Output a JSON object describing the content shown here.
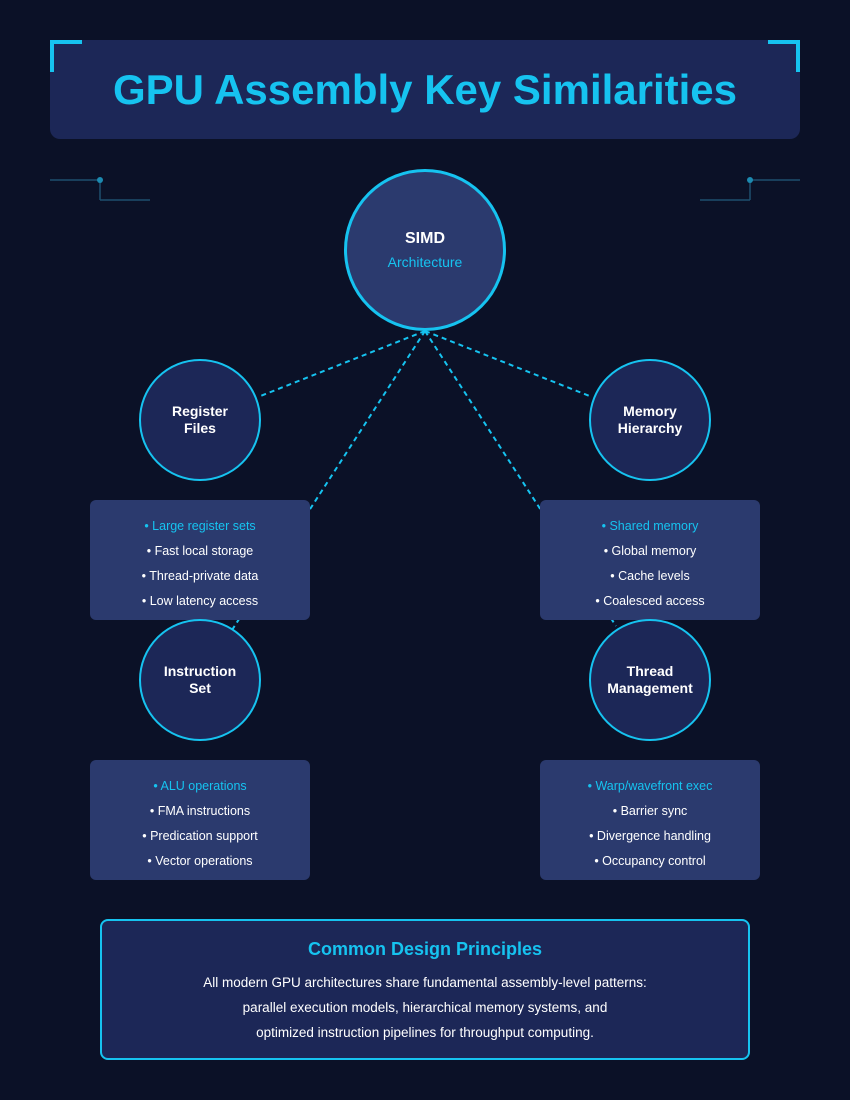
{
  "header": {
    "title": "GPU Assembly Key Similarities"
  },
  "center_node": {
    "title": "SIMD",
    "subtitle": "Architecture"
  },
  "nodes": [
    {
      "title_lines": [
        "Register",
        "Files"
      ],
      "features": [
        "• Large register sets",
        "• Fast local storage",
        "• Thread-private data",
        "• Low latency access"
      ]
    },
    {
      "title_lines": [
        "Memory",
        "Hierarchy"
      ],
      "features": [
        "• Shared memory",
        "• Global memory",
        "• Cache levels",
        "• Coalesced access"
      ]
    },
    {
      "title_lines": [
        "Instruction",
        "Set"
      ],
      "features": [
        "• ALU operations",
        "• FMA instructions",
        "• Predication support",
        "• Vector operations"
      ]
    },
    {
      "title_lines": [
        "Thread",
        "Management"
      ],
      "features": [
        "• Warp/wavefront exec",
        "• Barrier sync",
        "• Divergence handling",
        "• Occupancy control"
      ]
    }
  ],
  "summary": {
    "heading": "Common Design Principles",
    "lines": [
      "All modern GPU architectures share fundamental assembly-level patterns:",
      "parallel execution models, hierarchical memory systems, and",
      "optimized instruction pipelines for throughput computing."
    ]
  },
  "colors": {
    "background": "#0b1127",
    "accent": "#16c3f0",
    "panel": "#1c2757",
    "card": "#2b3a6e"
  }
}
